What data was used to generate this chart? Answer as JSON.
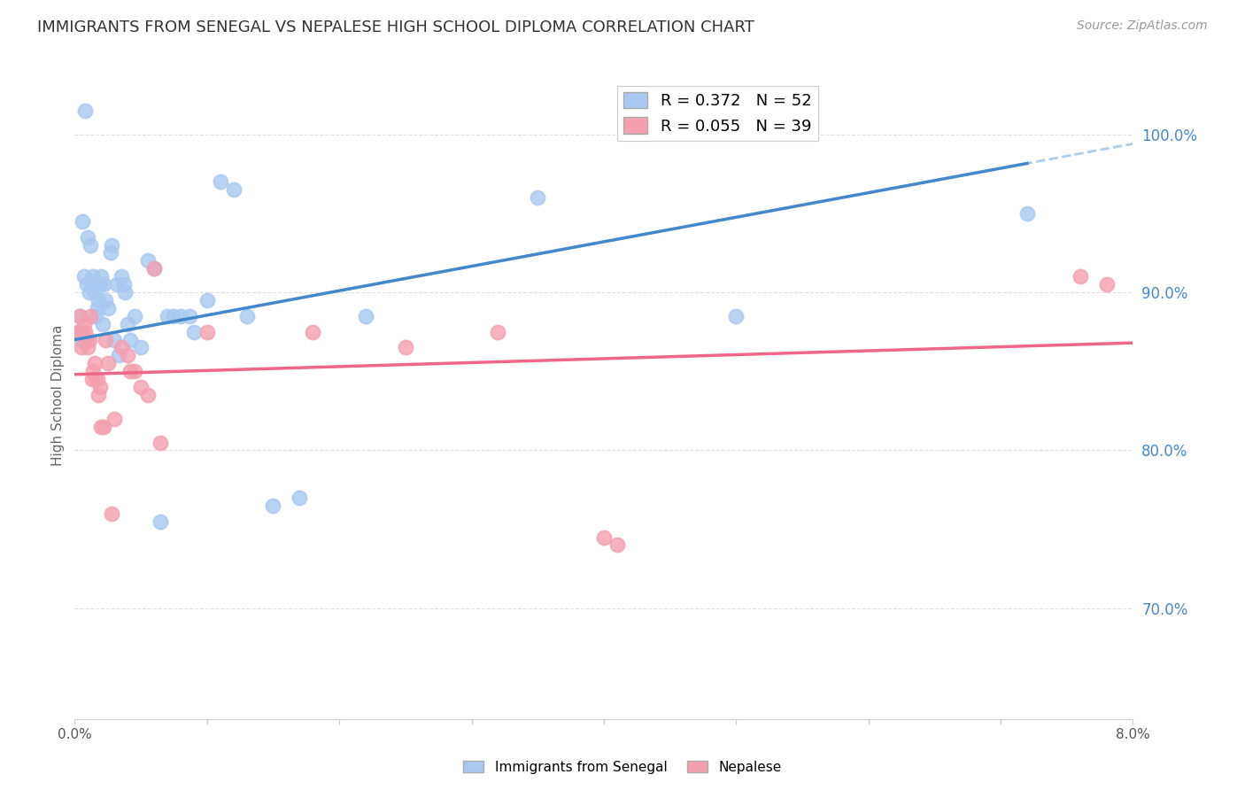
{
  "title": "IMMIGRANTS FROM SENEGAL VS NEPALESE HIGH SCHOOL DIPLOMA CORRELATION CHART",
  "source": "Source: ZipAtlas.com",
  "ylabel": "High School Diploma",
  "xlim": [
    0.0,
    8.0
  ],
  "ylim": [
    63.0,
    104.0
  ],
  "senegal_R": 0.372,
  "senegal_N": 52,
  "nepalese_R": 0.055,
  "nepalese_N": 39,
  "senegal_color": "#A8C8F0",
  "nepalese_color": "#F4A0B0",
  "senegal_line_color": "#4488CC",
  "nepalese_line_color": "#EE6688",
  "dashed_line_color": "#AACCEE",
  "grid_color": "#DDDDDD",
  "axis_color": "#CCCCCC",
  "background_color": "#FFFFFF",
  "right_tick_color": "#4488CC",
  "title_fontsize": 13,
  "source_fontsize": 10,
  "legend_fontsize": 13,
  "axis_label_fontsize": 11,
  "senegal_x": [
    0.02,
    0.04,
    0.05,
    0.06,
    0.07,
    0.08,
    0.09,
    0.1,
    0.11,
    0.12,
    0.13,
    0.14,
    0.15,
    0.16,
    0.17,
    0.18,
    0.19,
    0.2,
    0.21,
    0.22,
    0.23,
    0.25,
    0.27,
    0.28,
    0.3,
    0.32,
    0.33,
    0.35,
    0.37,
    0.38,
    0.4,
    0.42,
    0.45,
    0.5,
    0.55,
    0.6,
    0.65,
    0.7,
    0.75,
    0.8,
    0.87,
    0.9,
    1.0,
    1.1,
    1.2,
    1.3,
    1.5,
    1.7,
    2.2,
    3.5,
    5.0,
    7.2
  ],
  "senegal_y": [
    87.5,
    88.5,
    87.0,
    94.5,
    91.0,
    101.5,
    90.5,
    93.5,
    90.0,
    93.0,
    90.5,
    91.0,
    90.0,
    88.5,
    89.0,
    89.5,
    90.5,
    91.0,
    88.0,
    90.5,
    89.5,
    89.0,
    92.5,
    93.0,
    87.0,
    90.5,
    86.0,
    91.0,
    90.5,
    90.0,
    88.0,
    87.0,
    88.5,
    86.5,
    92.0,
    91.5,
    75.5,
    88.5,
    88.5,
    88.5,
    88.5,
    87.5,
    89.5,
    97.0,
    96.5,
    88.5,
    76.5,
    77.0,
    88.5,
    96.0,
    88.5,
    95.0
  ],
  "nepalese_x": [
    0.03,
    0.04,
    0.05,
    0.06,
    0.07,
    0.08,
    0.09,
    0.1,
    0.11,
    0.12,
    0.13,
    0.14,
    0.15,
    0.16,
    0.17,
    0.18,
    0.19,
    0.2,
    0.22,
    0.23,
    0.25,
    0.28,
    0.3,
    0.35,
    0.4,
    0.42,
    0.45,
    0.5,
    0.55,
    0.6,
    0.65,
    1.0,
    1.8,
    2.5,
    3.2,
    4.0,
    4.1,
    7.6,
    7.8
  ],
  "nepalese_y": [
    87.5,
    88.5,
    86.5,
    87.5,
    88.0,
    87.5,
    87.0,
    86.5,
    87.0,
    88.5,
    84.5,
    85.0,
    85.5,
    84.5,
    84.5,
    83.5,
    84.0,
    81.5,
    81.5,
    87.0,
    85.5,
    76.0,
    82.0,
    86.5,
    86.0,
    85.0,
    85.0,
    84.0,
    83.5,
    91.5,
    80.5,
    87.5,
    87.5,
    86.5,
    87.5,
    74.5,
    74.0,
    91.0,
    90.5
  ]
}
